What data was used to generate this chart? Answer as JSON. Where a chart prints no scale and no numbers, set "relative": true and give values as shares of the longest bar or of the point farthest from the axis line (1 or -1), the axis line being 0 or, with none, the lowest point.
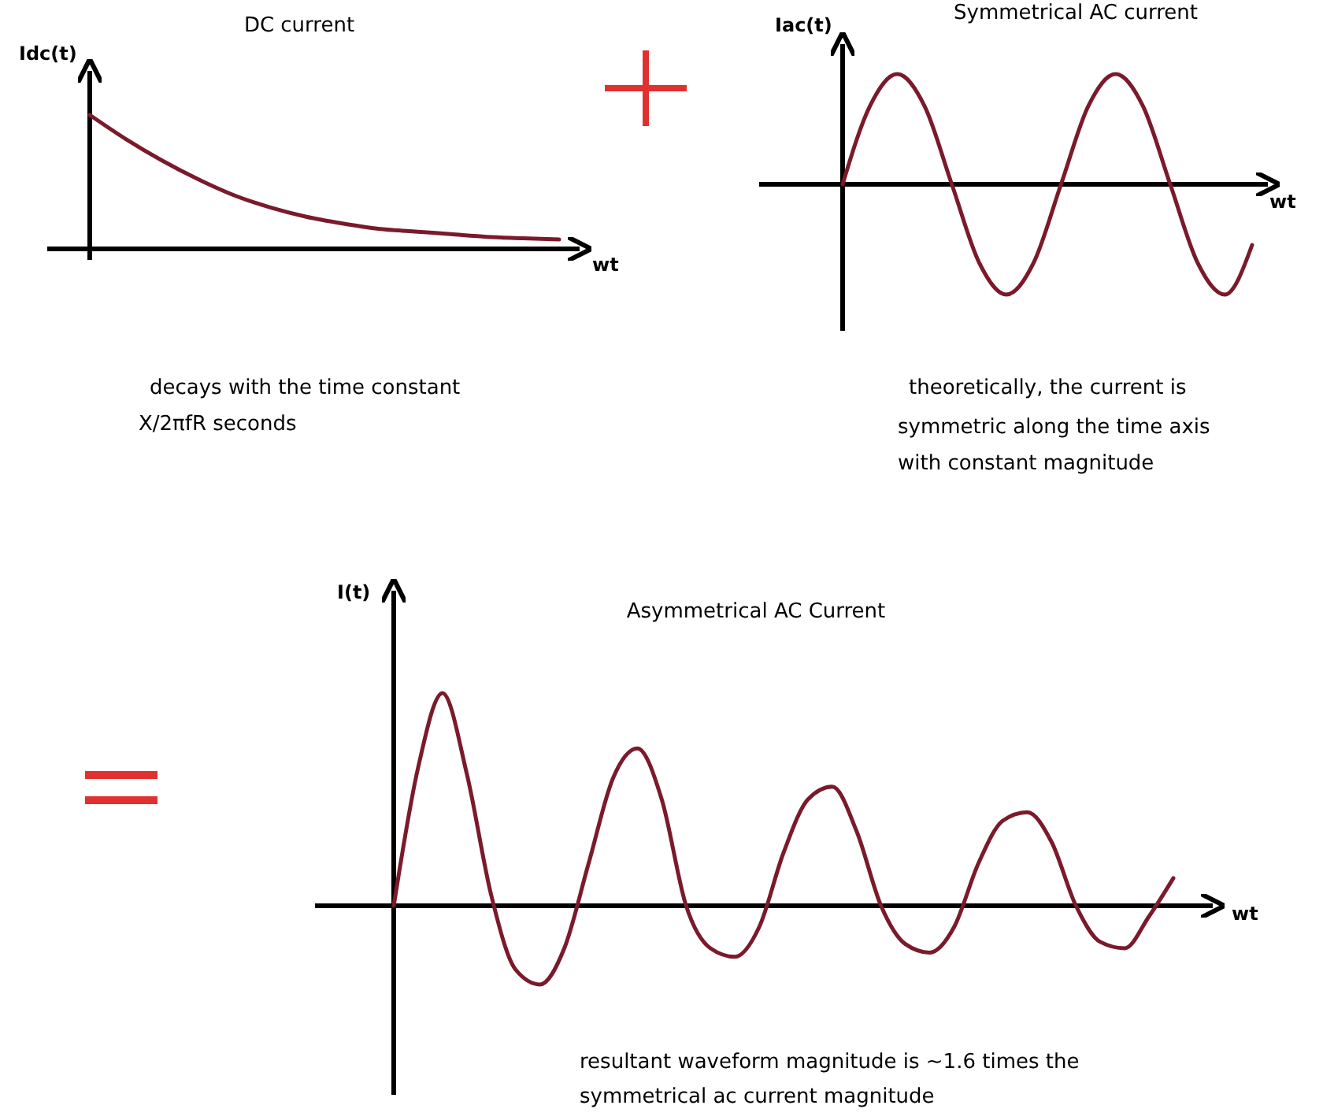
{
  "chart_data": [
    {
      "type": "line",
      "title": "DC current",
      "xlabel": "wt",
      "ylabel": "Idc(t)",
      "relative": true,
      "categories": [
        null,
        null,
        null,
        null,
        null,
        null,
        null,
        null,
        null,
        null,
        null,
        null,
        null,
        null
      ],
      "series": [
        {
          "color": "#7a1a2a",
          "values": [
            1,
            0.82,
            0.66,
            0.52,
            0.4,
            0.31,
            0.24,
            0.19,
            0.15,
            0.13,
            0.11,
            0.09,
            0.08,
            0.07
          ]
        }
      ],
      "annotations": [
        "decays with the time constant",
        "X/2πfR  seconds"
      ]
    },
    {
      "type": "line",
      "title": "Symmetrical AC current",
      "xlabel": "wt",
      "ylabel": "Iac(t)",
      "relative": true,
      "categories": [
        null,
        null,
        null,
        null,
        null,
        null,
        null,
        null,
        null,
        null,
        null,
        null,
        null,
        null,
        null,
        null
      ],
      "series": [
        {
          "color": "#7a1a2a",
          "values": [
            0,
            0.71,
            1,
            0.71,
            0,
            -0.71,
            -1,
            -0.71,
            0,
            0.71,
            1,
            0.71,
            0,
            -0.71,
            -1,
            -0.55
          ]
        }
      ],
      "annotations": [
        "theoretically, the current is",
        "symmetric along the time axis",
        "with constant magnitude"
      ]
    },
    {
      "type": "line",
      "title": "Asymmetrical AC Current",
      "xlabel": "wt",
      "ylabel": "I(t)",
      "relative": true,
      "categories": [
        null,
        null,
        null,
        null,
        null,
        null,
        null,
        null,
        null,
        null,
        null,
        null,
        null,
        null,
        null,
        null,
        null,
        null,
        null,
        null,
        null,
        null,
        null,
        null,
        null,
        null,
        null,
        null,
        null,
        null,
        null,
        null,
        null
      ],
      "series": [
        {
          "color": "#7a1a2a",
          "values": [
            0,
            0.65,
            1,
            0.62,
            0.05,
            -0.3,
            -0.37,
            -0.2,
            0.2,
            0.6,
            0.74,
            0.5,
            0,
            -0.2,
            -0.24,
            -0.1,
            0.25,
            0.5,
            0.56,
            0.35,
            0,
            -0.18,
            -0.22,
            -0.1,
            0.2,
            0.4,
            0.44,
            0.3,
            0,
            -0.17,
            -0.2,
            -0.05,
            0.13
          ]
        }
      ],
      "annotations": [
        "resultant waveform magnitude is ~1.6 times the",
        "symmetrical   ac   current magnitude"
      ]
    }
  ]
}
